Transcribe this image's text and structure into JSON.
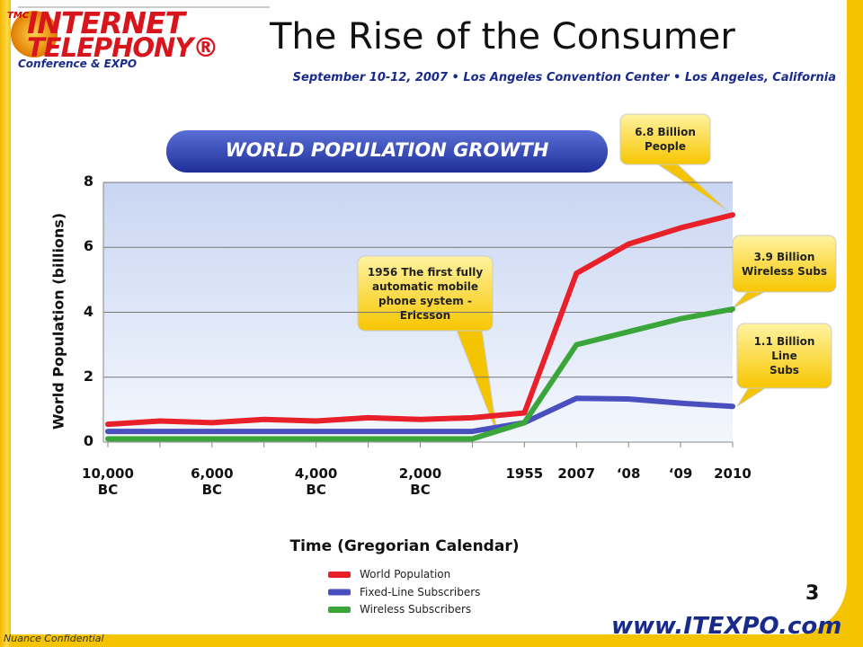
{
  "header": {
    "logo_badge": "TMC",
    "logo_line1": "INTERNET",
    "logo_line2": "TELEPHONY®",
    "logo_line3": "Conference & EXPO",
    "title": "The Rise of the Consumer",
    "subtitle": "September 10-12, 2007 • Los Angeles Convention Center • Los Angeles, California"
  },
  "chart_data": {
    "type": "line",
    "title": "WORLD POPULATION GROWTH",
    "y_label": "World Population (billions)",
    "x_label": "Time (Gregorian Calendar)",
    "categories": [
      "10,000 BC",
      null,
      "6,000 BC",
      null,
      "4,000 BC",
      null,
      "2,000 BC",
      null,
      "1955",
      "2007",
      "‘08",
      "‘09",
      "2010"
    ],
    "series": [
      {
        "name": "World Population",
        "color": "#e8202a",
        "values": [
          0.55,
          0.65,
          0.6,
          0.7,
          0.65,
          0.75,
          0.7,
          0.75,
          0.9,
          5.2,
          6.1,
          6.6,
          7.0
        ]
      },
      {
        "name": "Fixed-Line Subscribers",
        "color": "#4a4fc0",
        "values": [
          0.33,
          0.33,
          0.33,
          0.33,
          0.33,
          0.33,
          0.33,
          0.33,
          0.6,
          1.35,
          1.33,
          1.2,
          1.1
        ]
      },
      {
        "name": "Wireless Subscribers",
        "color": "#3aa63a",
        "values": [
          0.1,
          0.1,
          0.1,
          0.1,
          0.1,
          0.1,
          0.1,
          0.1,
          0.6,
          3.0,
          3.4,
          3.8,
          4.1
        ]
      }
    ],
    "ylim": [
      0,
      8
    ],
    "yticks": [
      0,
      2,
      4,
      6,
      8
    ],
    "grid": true,
    "legend": "bottom",
    "annotations": [
      {
        "lines": [
          "6.8 Billion",
          "People"
        ]
      },
      {
        "lines": [
          "3.9 Billion",
          "Wireless Subs"
        ]
      },
      {
        "lines": [
          "1.1 Billion",
          "Line",
          "Subs"
        ]
      },
      {
        "lines": [
          "1956 The first fully",
          "automatic mobile",
          "phone system -",
          "Ericsson"
        ]
      }
    ]
  },
  "footer": {
    "page_number": "3",
    "url": "www.ITEXPO.com",
    "confidential": "Nuance Confidential"
  }
}
